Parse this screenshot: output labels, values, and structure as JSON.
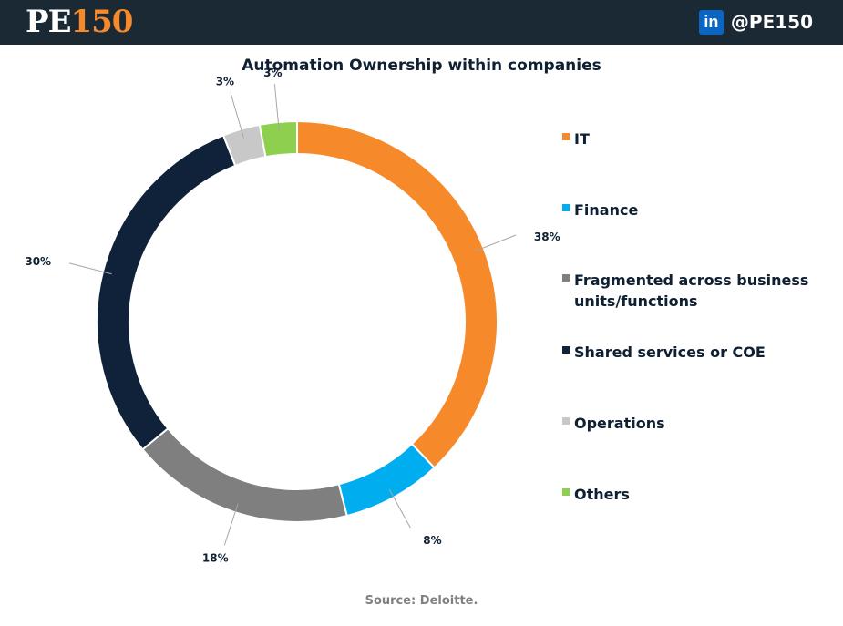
{
  "header": {
    "logo_pe": "PE",
    "logo_num": "150",
    "linkedin_icon": "in",
    "handle": "@PE150"
  },
  "chart_data": {
    "type": "pie",
    "title": "Automation Ownership within companies",
    "categories": [
      "IT",
      "Finance",
      "Fragmented across business units/functions",
      "Shared services or COE",
      "Operations",
      "Others"
    ],
    "values": [
      38,
      8,
      18,
      30,
      3,
      3
    ],
    "data_labels": [
      "38%",
      "8%",
      "18%",
      "30%",
      "3%",
      "3%"
    ],
    "colors": [
      "#f6892a",
      "#00aeef",
      "#7f7f7f",
      "#0f2239",
      "#c8c8c8",
      "#8dd04f"
    ],
    "legend_position": "right"
  },
  "source": "Source: Deloitte."
}
